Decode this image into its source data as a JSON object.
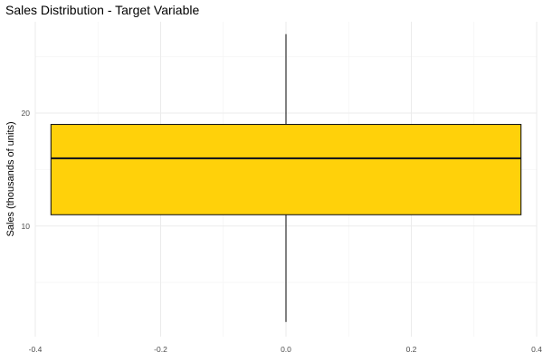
{
  "chart_data": {
    "type": "box",
    "title": "Sales Distribution - Target Variable",
    "xlabel": "",
    "ylabel": "Sales (thousands of units)",
    "x_ticks": [
      -0.4,
      -0.2,
      0.0,
      0.2,
      0.4
    ],
    "x_tick_labels": [
      "-0.4",
      "-0.2",
      "0.0",
      "0.2",
      "0.4"
    ],
    "y_ticks": [
      10,
      20
    ],
    "y_tick_labels": [
      "10",
      "20"
    ],
    "xlim": [
      -0.4,
      0.4
    ],
    "ylim": [
      0.2,
      28.1
    ],
    "box": {
      "x_left": -0.375,
      "x_right": 0.375,
      "min": 1.5,
      "q1": 11,
      "median": 16,
      "q3": 19,
      "max": 27
    },
    "grid": true,
    "colors": {
      "box_fill": "#FFD10A",
      "box_stroke": "#1a1a1a",
      "grid_major": "#ebebeb",
      "grid_minor": "#f5f5f5"
    }
  }
}
